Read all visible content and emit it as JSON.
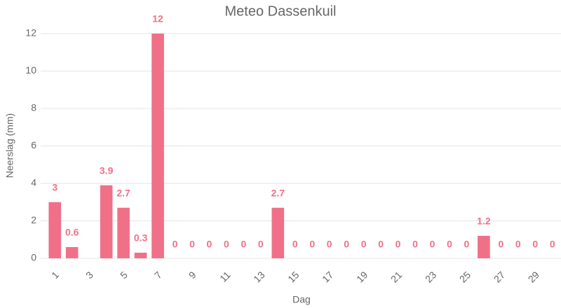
{
  "chart_data": {
    "type": "bar",
    "title": "Meteo Dassenkuil",
    "x_label": "Dag",
    "y_label": "Neerslag (mm)",
    "categories": [
      1,
      null,
      3,
      null,
      5,
      null,
      7,
      null,
      9,
      null,
      11,
      null,
      13,
      null,
      15,
      null,
      17,
      null,
      19,
      null,
      21,
      null,
      23,
      null,
      25,
      null,
      27,
      null,
      29,
      null
    ],
    "values": [
      3,
      0.6,
      null,
      3.9,
      2.7,
      0.3,
      12,
      0,
      0,
      0,
      0,
      0,
      0,
      2.7,
      0,
      0,
      0,
      0,
      0,
      0,
      0,
      0,
      0,
      0,
      0,
      1.2,
      0,
      0,
      0,
      0
    ],
    "color": "#f07088",
    "ylim": [
      0,
      12
    ],
    "yticks": [
      0,
      2,
      4,
      6,
      8,
      10,
      12
    ],
    "grid": true
  }
}
